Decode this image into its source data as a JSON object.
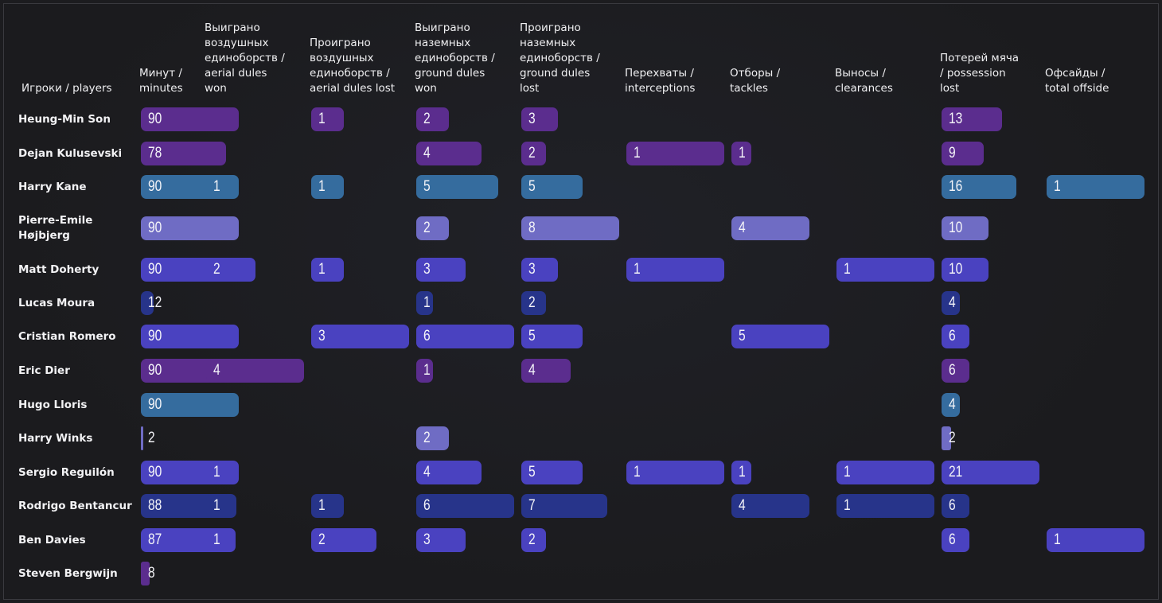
{
  "colors": {
    "purple": "#5b2d8e",
    "teal": "#356c9e",
    "lavender": "#6f6cc4",
    "indigo": "#4a42c0",
    "navy": "#27348a"
  },
  "chart_data": {
    "type": "table",
    "title": "",
    "columns": [
      {
        "key": "min",
        "label": "Минут /\nminutes",
        "max": 90
      },
      {
        "key": "awon",
        "label": "Выиграно\nвоздушных\nединоборств /\naerial dules\nwon",
        "max": 4
      },
      {
        "key": "alost",
        "label": "Проиграно\nвоздушных\nединоборств /\naerial dules lost",
        "max": 3
      },
      {
        "key": "gwon",
        "label": "Выиграно\nназемных\nединоборств /\nground dules\nwon",
        "max": 6
      },
      {
        "key": "glost",
        "label": "Проиграно\nназемных\nединоборств /\nground dules\nlost",
        "max": 8
      },
      {
        "key": "int",
        "label": "Перехваты /\ninterceptions",
        "max": 1
      },
      {
        "key": "tkl",
        "label": "Отборы /\ntackles",
        "max": 5
      },
      {
        "key": "clr",
        "label": "Выносы /\nclearances",
        "max": 1
      },
      {
        "key": "pos",
        "label": "Потерей мяча\n/ possession\nlost",
        "max": 21
      },
      {
        "key": "off",
        "label": "Офсайды /\ntotal offside",
        "max": 1
      }
    ],
    "player_header": "Игроки / players",
    "rows": [
      {
        "player": "Heung-Min Son",
        "color": "purple",
        "values": [
          90,
          null,
          1,
          2,
          3,
          null,
          null,
          null,
          13,
          null
        ]
      },
      {
        "player": "Dejan Kulusevski",
        "color": "purple",
        "values": [
          78,
          null,
          null,
          4,
          2,
          1,
          1,
          null,
          9,
          null
        ]
      },
      {
        "player": "Harry Kane",
        "color": "teal",
        "values": [
          90,
          1,
          1,
          5,
          5,
          null,
          null,
          null,
          16,
          1
        ]
      },
      {
        "player": "Pierre-Emile\nHøjbjerg",
        "color": "lavender",
        "values": [
          90,
          null,
          null,
          2,
          8,
          null,
          4,
          null,
          10,
          null
        ]
      },
      {
        "player": "Matt Doherty",
        "color": "indigo",
        "values": [
          90,
          2,
          1,
          3,
          3,
          1,
          null,
          1,
          10,
          null
        ]
      },
      {
        "player": "Lucas Moura",
        "color": "navy",
        "values": [
          12,
          null,
          null,
          1,
          2,
          null,
          null,
          null,
          4,
          null
        ]
      },
      {
        "player": "Cristian Romero",
        "color": "indigo",
        "values": [
          90,
          null,
          3,
          6,
          5,
          null,
          5,
          null,
          6,
          null
        ]
      },
      {
        "player": "Eric Dier",
        "color": "purple",
        "values": [
          90,
          4,
          null,
          1,
          4,
          null,
          null,
          null,
          6,
          null
        ]
      },
      {
        "player": "Hugo Lloris",
        "color": "teal",
        "values": [
          90,
          null,
          null,
          null,
          null,
          null,
          null,
          null,
          4,
          null
        ]
      },
      {
        "player": "Harry Winks",
        "color": "lavender",
        "values": [
          2,
          null,
          null,
          2,
          null,
          null,
          null,
          null,
          2,
          null
        ]
      },
      {
        "player": "Sergio Reguilón",
        "color": "indigo",
        "values": [
          90,
          1,
          null,
          4,
          5,
          1,
          1,
          1,
          21,
          null
        ]
      },
      {
        "player": "Rodrigo Bentancur",
        "color": "navy",
        "values": [
          88,
          1,
          1,
          6,
          7,
          null,
          4,
          1,
          6,
          null
        ]
      },
      {
        "player": "Ben Davies",
        "color": "indigo",
        "values": [
          87,
          1,
          2,
          3,
          2,
          null,
          null,
          null,
          6,
          1
        ]
      },
      {
        "player": "Steven Bergwijn",
        "color": "purple",
        "values": [
          8,
          null,
          null,
          null,
          null,
          null,
          null,
          null,
          null,
          null
        ]
      }
    ]
  }
}
